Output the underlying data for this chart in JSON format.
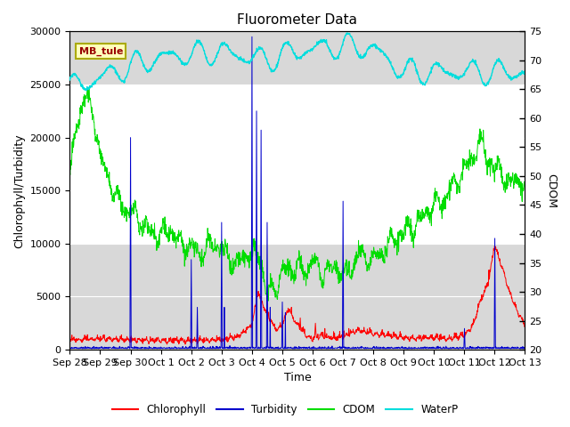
{
  "title": "Fluorometer Data",
  "xlabel": "Time",
  "ylabel_left": "Chlorophyll/Turbidity",
  "ylabel_right": "CDOM",
  "annotation": "MB_tule",
  "ylim_left": [
    0,
    30000
  ],
  "ylim_right": [
    20,
    75
  ],
  "x_tick_labels": [
    "Sep 28",
    "Sep 29",
    "Sep 30",
    "Oct 1",
    "Oct 2",
    "Oct 3",
    "Oct 4",
    "Oct 5",
    "Oct 6",
    "Oct 7",
    "Oct 8",
    "Oct 9",
    "Oct 10",
    "Oct 11",
    "Oct 12",
    "Oct 13"
  ],
  "legend_entries": [
    "Chlorophyll",
    "Turbidity",
    "CDOM",
    "WaterP"
  ],
  "line_colors": {
    "Chlorophyll": "#ff0000",
    "Turbidity": "#0000cc",
    "CDOM": "#00dd00",
    "WaterP": "#00dddd"
  },
  "bg_color": "#d8d8d8",
  "white_band": [
    10000,
    25000
  ],
  "title_fontsize": 11,
  "axis_label_fontsize": 9,
  "tick_fontsize": 8
}
